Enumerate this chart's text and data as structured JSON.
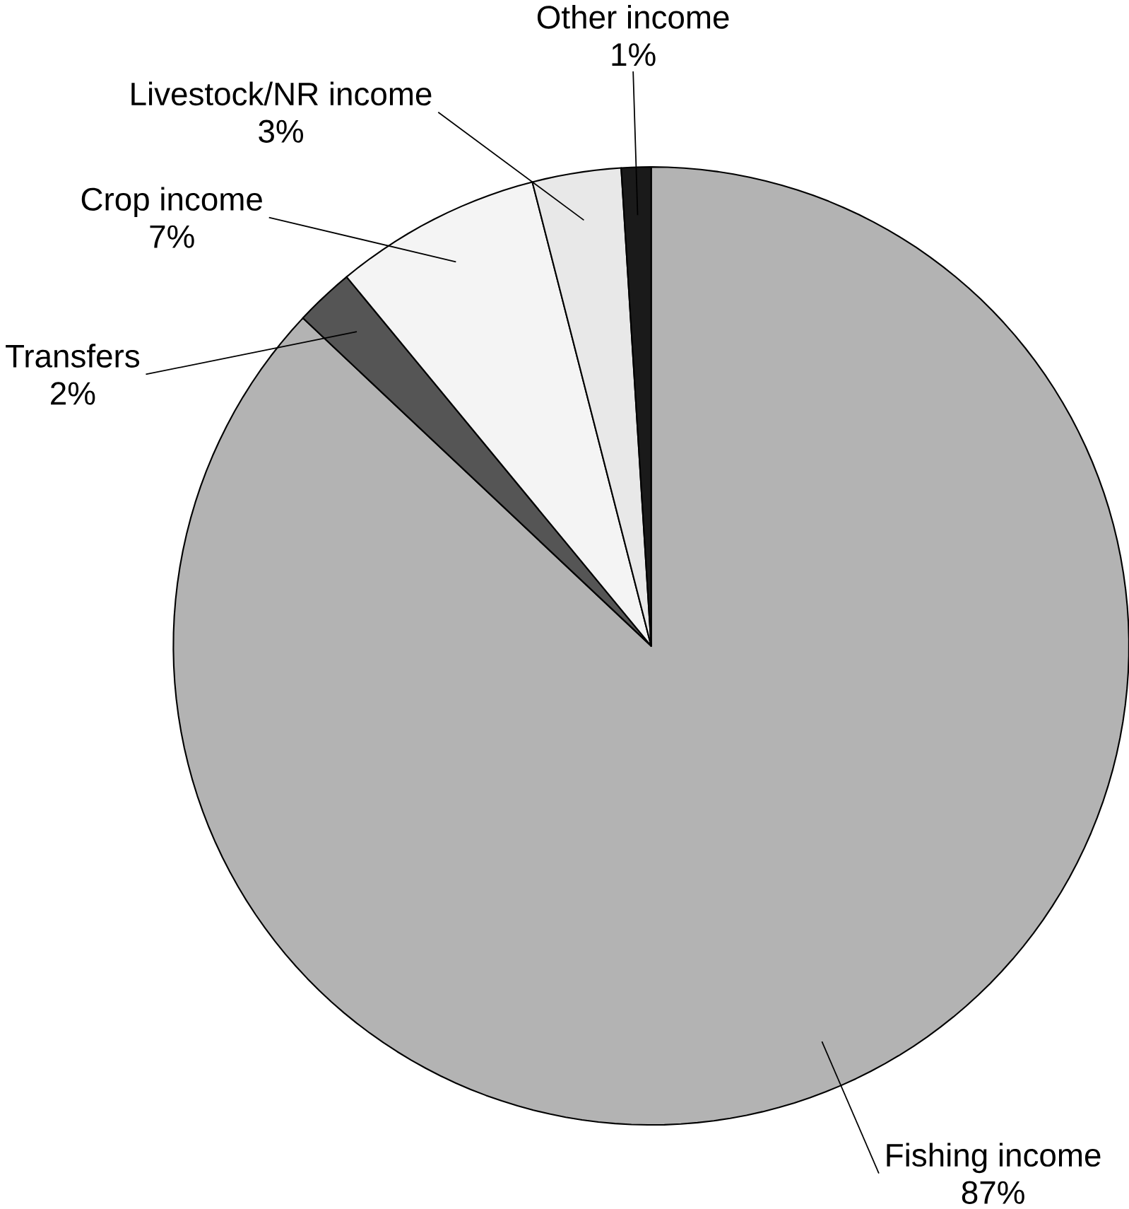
{
  "chart_data": {
    "type": "pie",
    "categories": [
      "Fishing income",
      "Transfers",
      "Crop income",
      "Livestock/NR income",
      "Other income"
    ],
    "values": [
      87,
      2,
      7,
      3,
      1
    ],
    "value_labels": [
      "87%",
      "2%",
      "7%",
      "3%",
      "1%"
    ],
    "colors": [
      "#b3b3b3",
      "#555555",
      "#f4f4f4",
      "#e8e8e8",
      "#1a1a1a"
    ]
  }
}
